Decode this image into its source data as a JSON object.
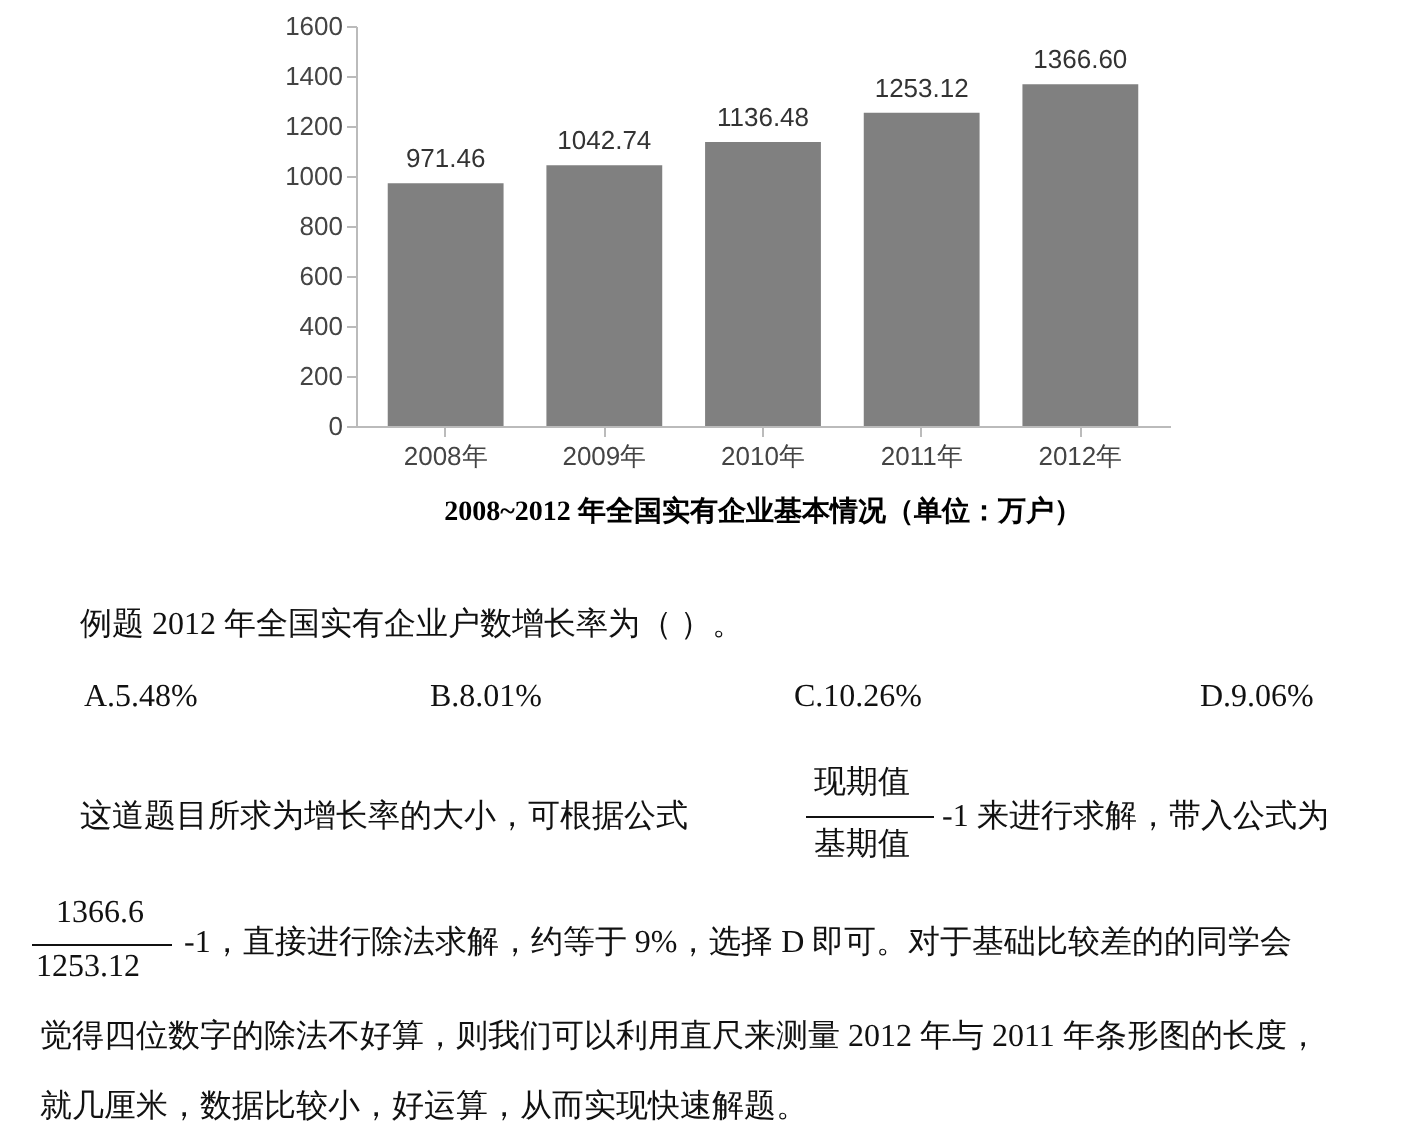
{
  "chart_data": {
    "type": "bar",
    "title": "2008~2012 年全国实有企业基本情况（单位：万户）",
    "categories": [
      "2008年",
      "2009年",
      "2010年",
      "2011年",
      "2012年"
    ],
    "values": [
      971.46,
      1042.74,
      1136.48,
      1253.12,
      1366.6
    ],
    "value_labels": [
      "971.46",
      "1042.74",
      "1136.48",
      "1253.12",
      "1366.60"
    ],
    "color": "#808080",
    "ylim": [
      0,
      1600
    ],
    "yticks": [
      0,
      200,
      400,
      600,
      800,
      1000,
      1200,
      1400,
      1600
    ],
    "grid": false,
    "annotations": [
      "例题 2012 年全国实有企业户数增长率为（ ）。",
      "A.5.48%",
      "B.8.01%",
      "C.10.26%",
      "D.9.06%",
      "这道题目所求为增长率的大小，可根据公式",
      "现期值",
      "基期值",
      "-1 来进行求解，带入公式为",
      "1366.6",
      "1253.12",
      "-1，直接进行除法求解，约等于 9%，选择 D 即可。对于基础比较差的的同学会",
      "觉得四位数字的除法不好算，则我们可以利用直尺来测量 2012 年与 2011 年条形图的长度，",
      "就几厘米，数据比较小，好运算，从而实现快速解题。"
    ]
  }
}
